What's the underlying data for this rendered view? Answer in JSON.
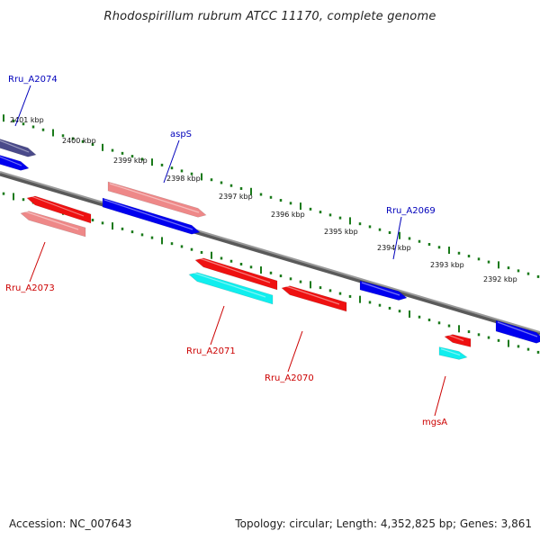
{
  "title": "Rhodospirillum rubrum ATCC 11170, complete genome",
  "accession": "Accession: NC_007643",
  "summary": "Topology: circular; Length: 4,352,825 bp; Genes: 3,861",
  "colors": {
    "backbone": "#7f7f7f",
    "tick": "#1a7a1a",
    "forward_gene": "#0000ee",
    "forward_gene_alt": "#4a4a8a",
    "reverse_gene": "#ee1111",
    "reverse_gene_pale": "#ee8888",
    "reverse_other": "#11eeee",
    "label_forward": "#0000bb",
    "label_reverse": "#cc0000"
  },
  "scale_labels": [
    "2401 kbp",
    "2400 kbp",
    "2399 kbp",
    "2398 kbp",
    "2397 kbp",
    "2396 kbp",
    "2395 kbp",
    "2394 kbp",
    "2393 kbp",
    "2392 kbp"
  ],
  "features": [
    {
      "name": "Rru_A2074",
      "strand": "forward",
      "color": "forward_gene_alt"
    },
    {
      "name": "",
      "strand": "forward",
      "color": "forward_gene"
    },
    {
      "name": "aspS",
      "strand": "forward",
      "color": "reverse_gene_pale"
    },
    {
      "name": "",
      "strand": "forward",
      "color": "forward_gene"
    },
    {
      "name": "Rru_A2073",
      "strand": "reverse",
      "color": "reverse_gene"
    },
    {
      "name": "",
      "strand": "reverse",
      "color": "reverse_gene_pale"
    },
    {
      "name": "Rru_A2071",
      "strand": "reverse",
      "color": "reverse_gene"
    },
    {
      "name": "",
      "strand": "reverse",
      "color": "reverse_other"
    },
    {
      "name": "Rru_A2070",
      "strand": "reverse",
      "color": "reverse_gene"
    },
    {
      "name": "Rru_A2069",
      "strand": "forward",
      "color": "forward_gene"
    },
    {
      "name": "mgsA",
      "strand": "reverse",
      "color": "reverse_gene"
    },
    {
      "name": "",
      "strand": "reverse",
      "color": "reverse_other"
    },
    {
      "name": "",
      "strand": "forward",
      "color": "forward_gene"
    }
  ]
}
